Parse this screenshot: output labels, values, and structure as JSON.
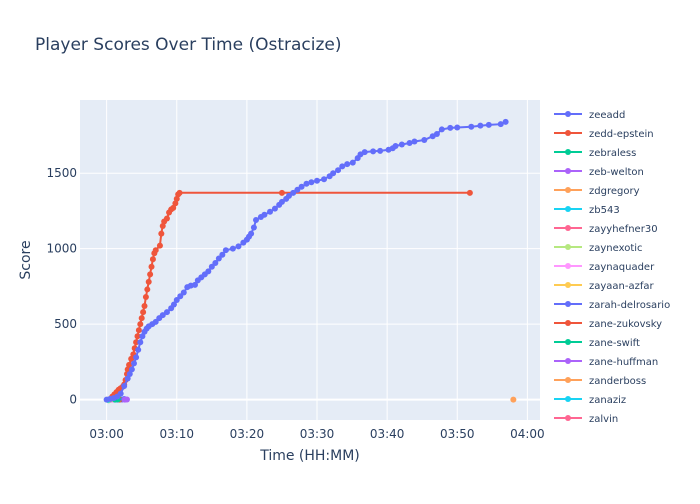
{
  "chart_data": {
    "type": "line",
    "title": "Player Scores Over Time (Ostracize)",
    "xlabel": "Time (HH:MM)",
    "ylabel": "Score",
    "x_ticks": [
      "03:00",
      "03:10",
      "03:20",
      "03:30",
      "03:40",
      "03:50",
      "04:00"
    ],
    "x_tick_minutes": [
      0,
      10,
      20,
      30,
      40,
      50,
      60
    ],
    "xlim": [
      -3.8,
      61.8
    ],
    "y_ticks": [
      0,
      500,
      1000,
      1500
    ],
    "ylim": [
      -135,
      1985
    ],
    "grid": true,
    "legend_position": "right",
    "series": [
      {
        "name": "zeeadd",
        "color": "#636efa",
        "points": [
          [
            0.0,
            0
          ],
          [
            0.5,
            5
          ],
          [
            1.0,
            10
          ],
          [
            1.5,
            20
          ],
          [
            2.0,
            40
          ],
          [
            2.5,
            90
          ],
          [
            3.0,
            140
          ],
          [
            3.3,
            170
          ],
          [
            3.6,
            200
          ],
          [
            3.9,
            240
          ],
          [
            4.2,
            280
          ],
          [
            4.5,
            330
          ],
          [
            4.8,
            380
          ],
          [
            5.1,
            420
          ],
          [
            5.4,
            450
          ],
          [
            5.7,
            470
          ],
          [
            6.0,
            485
          ],
          [
            6.5,
            500
          ],
          [
            7.0,
            515
          ],
          [
            7.5,
            540
          ],
          [
            8.0,
            560
          ],
          [
            8.6,
            580
          ],
          [
            9.2,
            605
          ],
          [
            9.6,
            630
          ],
          [
            10.0,
            660
          ],
          [
            10.5,
            685
          ],
          [
            11.0,
            710
          ],
          [
            11.5,
            745
          ],
          [
            12.0,
            755
          ],
          [
            12.6,
            760
          ],
          [
            13.0,
            790
          ],
          [
            13.5,
            810
          ],
          [
            14.0,
            830
          ],
          [
            14.5,
            850
          ],
          [
            15.0,
            880
          ],
          [
            15.5,
            905
          ],
          [
            16.0,
            935
          ],
          [
            16.5,
            960
          ],
          [
            17.0,
            990
          ],
          [
            18.0,
            1000
          ],
          [
            18.8,
            1015
          ],
          [
            19.5,
            1040
          ],
          [
            20.0,
            1060
          ],
          [
            20.3,
            1080
          ],
          [
            20.6,
            1100
          ],
          [
            21.0,
            1140
          ],
          [
            21.3,
            1190
          ],
          [
            22.0,
            1210
          ],
          [
            22.5,
            1225
          ],
          [
            23.3,
            1245
          ],
          [
            24.0,
            1265
          ],
          [
            24.6,
            1290
          ],
          [
            25.0,
            1310
          ],
          [
            25.6,
            1330
          ],
          [
            26.0,
            1350
          ],
          [
            26.6,
            1370
          ],
          [
            27.2,
            1390
          ],
          [
            27.8,
            1410
          ],
          [
            28.5,
            1430
          ],
          [
            29.2,
            1440
          ],
          [
            30.0,
            1450
          ],
          [
            31.0,
            1460
          ],
          [
            31.8,
            1480
          ],
          [
            32.3,
            1500
          ],
          [
            33.0,
            1520
          ],
          [
            33.6,
            1545
          ],
          [
            34.3,
            1560
          ],
          [
            35.1,
            1570
          ],
          [
            35.8,
            1600
          ],
          [
            36.2,
            1625
          ],
          [
            36.8,
            1640
          ],
          [
            38.0,
            1645
          ],
          [
            39.0,
            1648
          ],
          [
            40.2,
            1655
          ],
          [
            40.8,
            1665
          ],
          [
            41.2,
            1680
          ],
          [
            42.1,
            1690
          ],
          [
            43.2,
            1700
          ],
          [
            43.9,
            1710
          ],
          [
            45.3,
            1720
          ],
          [
            46.5,
            1745
          ],
          [
            47.1,
            1760
          ],
          [
            47.8,
            1790
          ],
          [
            49.0,
            1800
          ],
          [
            50.0,
            1803
          ],
          [
            52.0,
            1808
          ],
          [
            53.3,
            1815
          ],
          [
            54.5,
            1820
          ],
          [
            56.2,
            1825
          ],
          [
            56.9,
            1840
          ]
        ]
      },
      {
        "name": "zedd-epstein",
        "color": "#ef553b",
        "points": [
          [
            0.8,
            20
          ],
          [
            1.1,
            35
          ],
          [
            1.4,
            50
          ],
          [
            1.7,
            65
          ],
          [
            2.0,
            75
          ],
          [
            2.3,
            85
          ],
          [
            2.5,
            100
          ],
          [
            2.7,
            130
          ],
          [
            2.9,
            170
          ],
          [
            3.0,
            200
          ],
          [
            3.2,
            230
          ],
          [
            3.5,
            270
          ],
          [
            3.8,
            300
          ],
          [
            4.0,
            340
          ],
          [
            4.2,
            380
          ],
          [
            4.4,
            420
          ],
          [
            4.6,
            460
          ],
          [
            4.8,
            500
          ],
          [
            5.0,
            540
          ],
          [
            5.2,
            580
          ],
          [
            5.4,
            620
          ],
          [
            5.6,
            680
          ],
          [
            5.8,
            730
          ],
          [
            6.0,
            780
          ],
          [
            6.2,
            830
          ],
          [
            6.4,
            880
          ],
          [
            6.6,
            930
          ],
          [
            6.8,
            970
          ],
          [
            7.0,
            990
          ],
          [
            7.6,
            1020
          ],
          [
            7.8,
            1100
          ],
          [
            8.0,
            1150
          ],
          [
            8.2,
            1180
          ],
          [
            8.6,
            1200
          ],
          [
            8.9,
            1240
          ],
          [
            9.2,
            1260
          ],
          [
            9.5,
            1270
          ],
          [
            9.8,
            1300
          ],
          [
            10.0,
            1330
          ],
          [
            10.2,
            1360
          ],
          [
            10.4,
            1370
          ],
          [
            25.0,
            1370
          ],
          [
            51.8,
            1370
          ]
        ]
      },
      {
        "name": "zebraless",
        "color": "#00cc96",
        "points": [
          [
            1.2,
            0
          ],
          [
            1.6,
            2
          ]
        ]
      },
      {
        "name": "zeb-welton",
        "color": "#ab63fa",
        "points": [
          [
            2.6,
            0
          ],
          [
            2.9,
            1
          ]
        ]
      },
      {
        "name": "zdgregory",
        "color": "#ffa15a",
        "points": [
          [
            58.0,
            0
          ]
        ]
      },
      {
        "name": "zb543",
        "color": "#19d3f3",
        "points": [
          [
            0.2,
            -2
          ]
        ]
      },
      {
        "name": "zayyhefner30",
        "color": "#ff6692",
        "points": [
          [
            0.5,
            2
          ]
        ]
      },
      {
        "name": "zaynexotic",
        "color": "#b6e880",
        "points": [
          [
            0.3,
            -5
          ],
          [
            0.7,
            3
          ]
        ]
      },
      {
        "name": "zaynaquader",
        "color": "#ff97ff",
        "points": [
          [
            0.9,
            -1
          ]
        ]
      },
      {
        "name": "zayaan-azfar",
        "color": "#fecb52",
        "points": [
          [
            0.1,
            0
          ]
        ]
      },
      {
        "name": "zarah-delrosario",
        "color": "#636efa",
        "points": [
          [
            1.5,
            0
          ],
          [
            2.5,
            4
          ]
        ]
      },
      {
        "name": "zane-zukovsky",
        "color": "#ef553b",
        "points": [
          [
            1.8,
            0
          ]
        ]
      },
      {
        "name": "zane-swift",
        "color": "#00cc96",
        "points": [
          [
            1.0,
            0
          ],
          [
            1.9,
            1
          ]
        ]
      },
      {
        "name": "zane-huffman",
        "color": "#ab63fa",
        "points": [
          [
            2.2,
            0
          ]
        ]
      },
      {
        "name": "zanderboss",
        "color": "#ffa15a",
        "points": [
          [
            0.4,
            0
          ]
        ]
      },
      {
        "name": "zanaziz",
        "color": "#19d3f3",
        "points": [
          [
            0.6,
            0
          ]
        ]
      },
      {
        "name": "zalvin",
        "color": "#ff6692",
        "points": [
          [
            0.8,
            0
          ]
        ]
      }
    ]
  }
}
